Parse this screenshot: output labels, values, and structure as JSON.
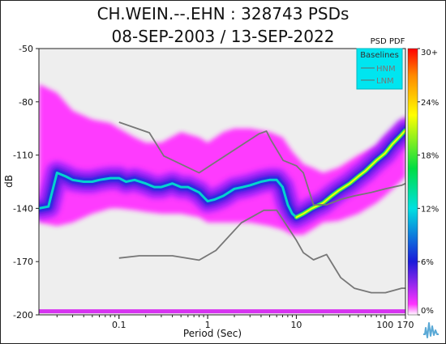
{
  "chart_data": {
    "type": "heatmap",
    "title": "CH.WEIN.--.EHN : 328743 PSDs",
    "subtitle": "08-SEP-2003 / 13-SEP-2022",
    "xlabel": "Period (Sec)",
    "ylabel": "dB",
    "x_scale": "log",
    "xlim": [
      0.0125,
      170
    ],
    "ylim": [
      -200,
      -50
    ],
    "x_ticks": [
      0.1,
      1,
      10,
      100,
      170
    ],
    "x_tick_labels": [
      "0.1",
      "1",
      "10",
      "100",
      "170"
    ],
    "y_ticks": [
      -50,
      -80,
      -110,
      -140,
      -170,
      -200
    ],
    "y_tick_labels": [
      "-50",
      "-80",
      "-110",
      "-140",
      "-170",
      "-200"
    ],
    "colorbar": {
      "label": "PSD PDF",
      "ticks": [
        0,
        6,
        12,
        18,
        24,
        30
      ],
      "tick_labels": [
        "0%",
        "6%",
        "12%",
        "18%",
        "24%",
        "30+"
      ]
    },
    "legend": {
      "title": "Baselines",
      "entries": [
        "HNM",
        "LNM"
      ],
      "placement": "top-right",
      "background": "#00e5f0"
    },
    "colors": {
      "background": "#eeeeee",
      "baseline_line": "#777777",
      "pdf_low": "#ff33ff",
      "pdf_mid": "#2a2adf",
      "pdf_high": "#00e5cc",
      "pdf_peak": "#ffff00"
    },
    "series": [
      {
        "name": "HNM",
        "x": [
          0.1,
          0.22,
          0.32,
          0.8,
          3.8,
          4.6,
          5.1,
          7.1,
          10,
          12,
          15.6,
          21.9,
          31.6,
          45,
          70,
          101,
          154,
          170
        ],
        "y": [
          -91.5,
          -97.4,
          -110.5,
          -120,
          -98,
          -96.5,
          -101,
          -113,
          -116,
          -120,
          -138,
          -138,
          -135,
          -133,
          -131,
          -129,
          -127,
          -126
        ]
      },
      {
        "name": "LNM",
        "x": [
          0.1,
          0.17,
          0.4,
          0.8,
          1.24,
          2.4,
          4.3,
          5,
          6,
          10,
          12,
          15.6,
          21.9,
          31.6,
          45,
          70,
          101,
          154,
          170
        ],
        "y": [
          -168,
          -166.7,
          -166.7,
          -169.2,
          -163.7,
          -148.1,
          -141.1,
          -141.1,
          -141,
          -158,
          -165,
          -169,
          -166,
          -179,
          -185,
          -187.5,
          -187.5,
          -185,
          -185
        ]
      }
    ],
    "mode_curve": {
      "x": [
        0.0125,
        0.016,
        0.02,
        0.025,
        0.03,
        0.04,
        0.05,
        0.06,
        0.08,
        0.1,
        0.12,
        0.15,
        0.2,
        0.25,
        0.3,
        0.4,
        0.5,
        0.6,
        0.8,
        1.0,
        1.2,
        1.5,
        2.0,
        2.5,
        3.0,
        4.0,
        5.0,
        6.0,
        7.0,
        8.0,
        9.0,
        10,
        12,
        15,
        20,
        25,
        30,
        40,
        50,
        60,
        80,
        100,
        120,
        150,
        170
      ],
      "y": [
        -140,
        -139,
        -120,
        -122,
        -124,
        -125,
        -125,
        -124,
        -123,
        -123,
        -125,
        -124,
        -126,
        -128,
        -128,
        -126,
        -128,
        -128,
        -131,
        -136,
        -135,
        -133,
        -129,
        -128,
        -127,
        -125,
        -124,
        -124,
        -128,
        -138,
        -143,
        -145,
        -143,
        -140,
        -137,
        -133,
        -130,
        -126,
        -122,
        -119,
        -113,
        -109,
        -104,
        -99,
        -96
      ]
    },
    "density_band": {
      "x": [
        0.0125,
        0.02,
        0.03,
        0.05,
        0.08,
        0.1,
        0.15,
        0.2,
        0.3,
        0.5,
        0.8,
        1,
        1.5,
        2,
        3,
        5,
        7,
        9,
        12,
        15,
        20,
        30,
        50,
        80,
        100,
        150,
        170
      ],
      "upper": [
        -70,
        -75,
        -85,
        -90,
        -92,
        -95,
        -100,
        -103,
        -103,
        -97,
        -100,
        -103,
        -97,
        -95,
        -95,
        -97,
        -100,
        -108,
        -115,
        -117,
        -120,
        -117,
        -110,
        -105,
        -100,
        -92,
        -88
      ],
      "lower": [
        -148,
        -150,
        -148,
        -143,
        -140,
        -140,
        -141,
        -142,
        -143,
        -143,
        -145,
        -148,
        -148,
        -148,
        -148,
        -150,
        -152,
        -155,
        -155,
        -152,
        -148,
        -147,
        -143,
        -137,
        -133,
        -125,
        -122
      ]
    }
  }
}
